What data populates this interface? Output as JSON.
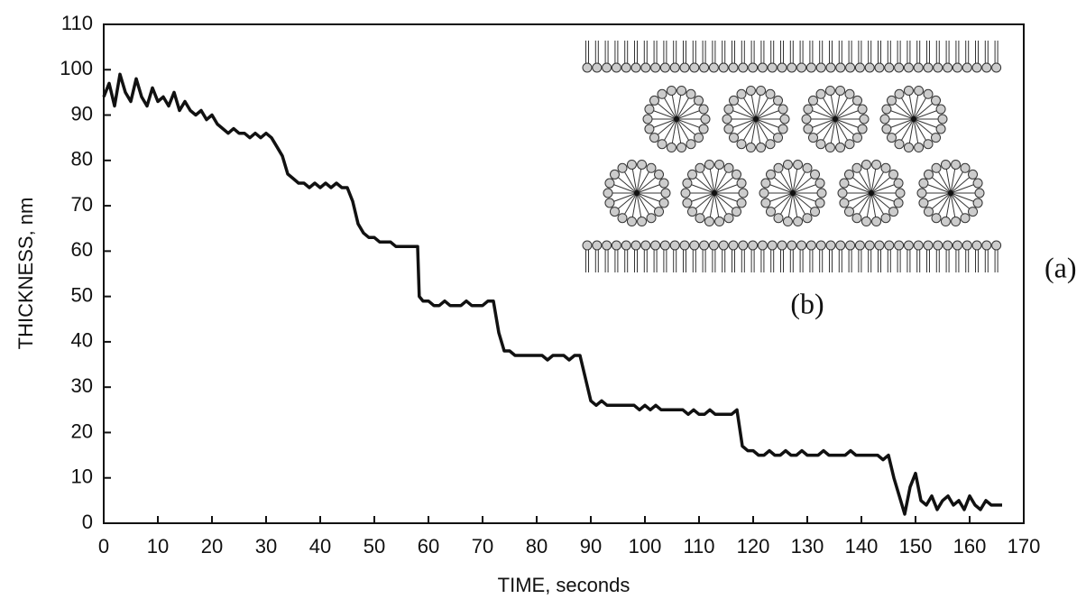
{
  "chart_data": {
    "type": "line",
    "xlabel": "TIME, seconds",
    "ylabel": "THICKNESS, nm",
    "annotations": [
      "(a)",
      "(b)"
    ],
    "xlim": [
      0,
      170
    ],
    "xticks": [
      0,
      10,
      20,
      30,
      40,
      50,
      60,
      70,
      80,
      90,
      100,
      110,
      120,
      130,
      140,
      150,
      160,
      170
    ],
    "ylim": [
      0,
      110
    ],
    "yticks": [
      0,
      10,
      20,
      30,
      40,
      50,
      60,
      70,
      80,
      90,
      100,
      110
    ],
    "grid": false,
    "series": [
      {
        "color": "#111111",
        "x": [
          0,
          1,
          2,
          3,
          4,
          5,
          6,
          7,
          8,
          9,
          10,
          11,
          12,
          13,
          14,
          15,
          16,
          17,
          18,
          19,
          20,
          21,
          22,
          23,
          24,
          25,
          26,
          27,
          28,
          29,
          30,
          31,
          32,
          33,
          34,
          35,
          36,
          37,
          38,
          39,
          40,
          41,
          42,
          43,
          44,
          45,
          46,
          47,
          48,
          49,
          50,
          51,
          52,
          53,
          54,
          55,
          56,
          57,
          58,
          58.3,
          59,
          60,
          61,
          62,
          63,
          64,
          65,
          66,
          67,
          68,
          69,
          70,
          71,
          72,
          73,
          74,
          75,
          76,
          77,
          78,
          79,
          80,
          81,
          82,
          83,
          84,
          85,
          86,
          87,
          88,
          89,
          90,
          91,
          92,
          93,
          94,
          95,
          96,
          97,
          98,
          99,
          100,
          101,
          102,
          103,
          104,
          105,
          106,
          107,
          108,
          109,
          110,
          111,
          112,
          113,
          114,
          115,
          116,
          117,
          118,
          119,
          120,
          121,
          122,
          123,
          124,
          125,
          126,
          127,
          128,
          129,
          130,
          131,
          132,
          133,
          134,
          135,
          136,
          137,
          138,
          139,
          140,
          141,
          142,
          143,
          144,
          145,
          146,
          147,
          148,
          149,
          150,
          151,
          152,
          153,
          154,
          155,
          156,
          157,
          158,
          159,
          160,
          161,
          162,
          163,
          164,
          165,
          166
        ],
        "values": [
          94,
          97,
          92,
          99,
          95,
          93,
          98,
          94,
          92,
          96,
          93,
          94,
          92,
          95,
          91,
          93,
          91,
          90,
          91,
          89,
          90,
          88,
          87,
          86,
          87,
          86,
          86,
          85,
          86,
          85,
          86,
          85,
          83,
          81,
          77,
          76,
          75,
          75,
          74,
          75,
          74,
          75,
          74,
          75,
          74,
          74,
          71,
          66,
          64,
          63,
          63,
          62,
          62,
          62,
          61,
          61,
          61,
          61,
          61,
          50,
          49,
          49,
          48,
          48,
          49,
          48,
          48,
          48,
          49,
          48,
          48,
          48,
          49,
          49,
          42,
          38,
          38,
          37,
          37,
          37,
          37,
          37,
          37,
          36,
          37,
          37,
          37,
          36,
          37,
          37,
          32,
          27,
          26,
          27,
          26,
          26,
          26,
          26,
          26,
          26,
          25,
          26,
          25,
          26,
          25,
          25,
          25,
          25,
          25,
          24,
          25,
          24,
          24,
          25,
          24,
          24,
          24,
          24,
          25,
          17,
          16,
          16,
          15,
          15,
          16,
          15,
          15,
          16,
          15,
          15,
          16,
          15,
          15,
          15,
          16,
          15,
          15,
          15,
          15,
          16,
          15,
          15,
          15,
          15,
          15,
          14,
          15,
          10,
          6,
          2,
          8,
          11,
          5,
          4,
          6,
          3,
          5,
          6,
          4,
          5,
          3,
          6,
          4,
          3,
          5,
          4,
          4,
          4
        ]
      }
    ]
  }
}
